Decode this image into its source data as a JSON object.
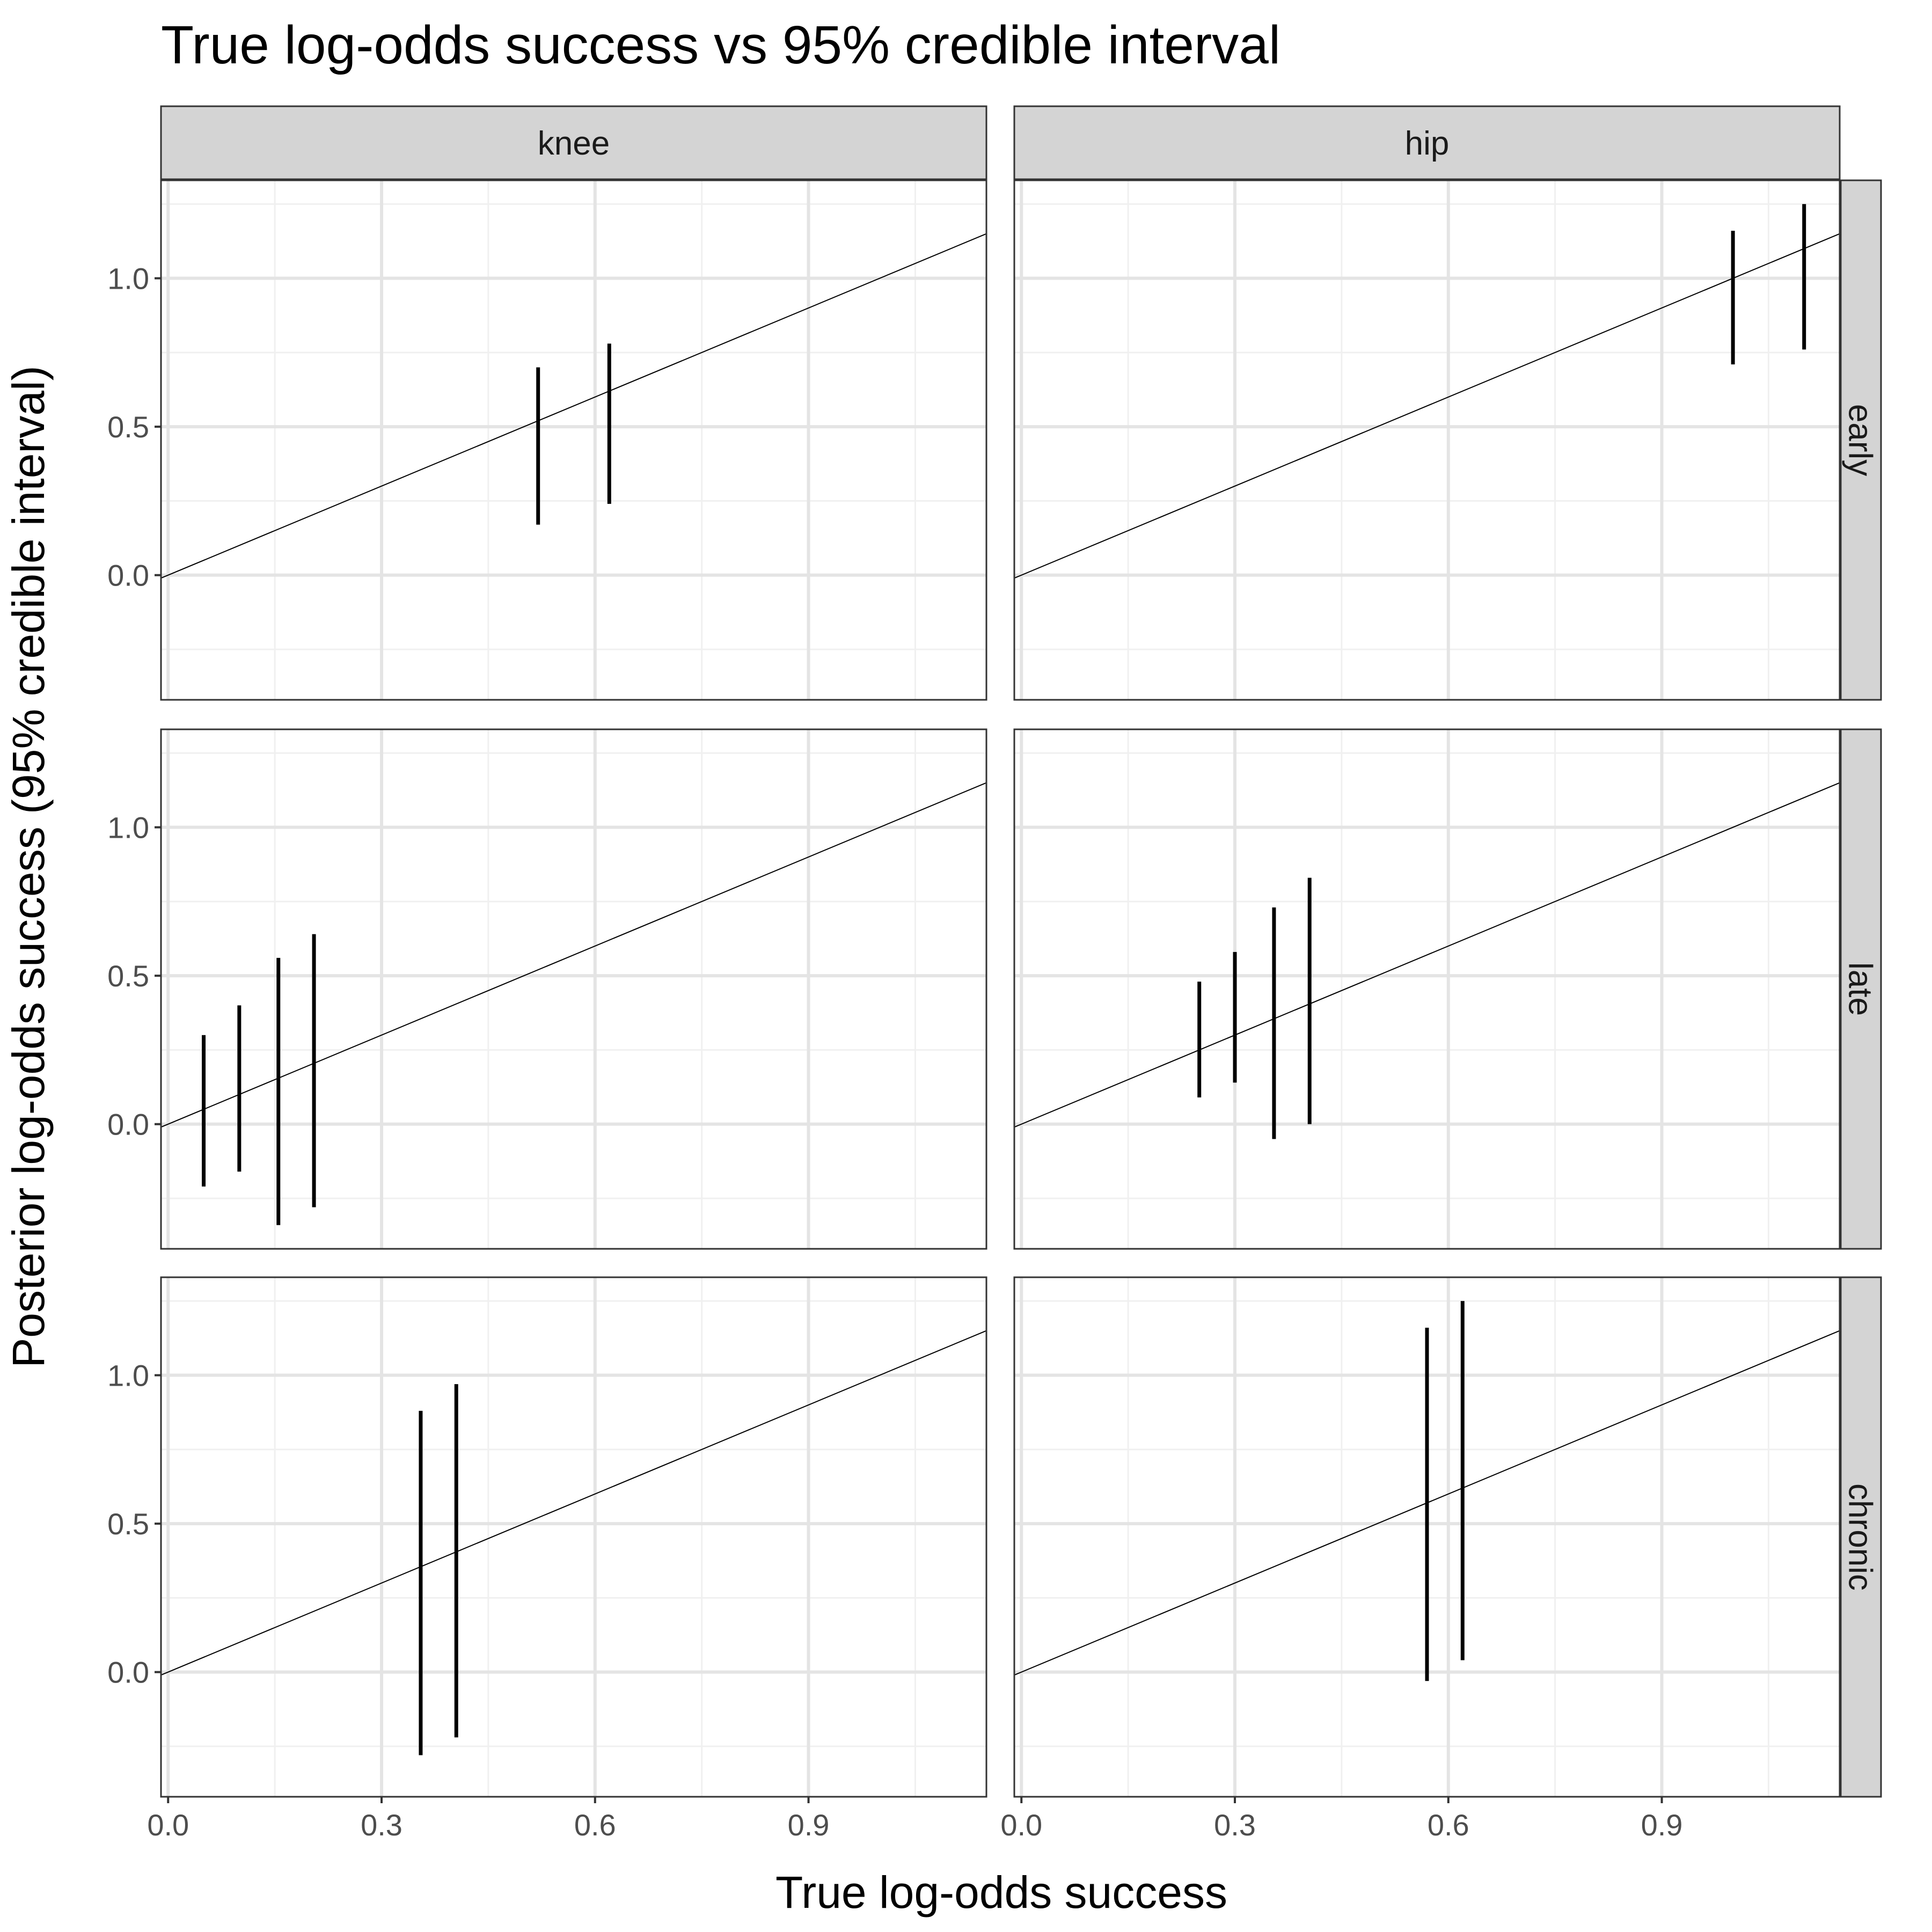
{
  "chart_data": {
    "type": "errorbar",
    "title": "True log-odds success vs 95% credible interval",
    "xlabel": "True log-odds success",
    "ylabel": "Posterior log-odds success (95% credible interval)",
    "xlim": [
      -0.01,
      1.15
    ],
    "ylim": [
      -0.42,
      1.33
    ],
    "x_ticks": [
      0.0,
      0.3,
      0.6,
      0.9
    ],
    "x_tick_labels": [
      "0.0",
      "0.3",
      "0.6",
      "0.9"
    ],
    "y_ticks": [
      0.0,
      0.5,
      1.0
    ],
    "y_tick_labels": [
      "0.0",
      "0.5",
      "1.0"
    ],
    "reference_line": "y = x",
    "grid": true,
    "columns": [
      "knee",
      "hip"
    ],
    "rows": [
      "early",
      "late",
      "chronic"
    ],
    "panels": [
      {
        "column": "knee",
        "row": "early",
        "intervals": [
          {
            "x": 0.52,
            "lower": 0.17,
            "upper": 0.7
          },
          {
            "x": 0.62,
            "lower": 0.24,
            "upper": 0.78
          }
        ]
      },
      {
        "column": "hip",
        "row": "early",
        "intervals": [
          {
            "x": 1.0,
            "lower": 0.71,
            "upper": 1.16
          },
          {
            "x": 1.1,
            "lower": 0.76,
            "upper": 1.25
          }
        ]
      },
      {
        "column": "knee",
        "row": "late",
        "intervals": [
          {
            "x": 0.05,
            "lower": -0.21,
            "upper": 0.3
          },
          {
            "x": 0.1,
            "lower": -0.16,
            "upper": 0.4
          },
          {
            "x": 0.155,
            "lower": -0.34,
            "upper": 0.56
          },
          {
            "x": 0.205,
            "lower": -0.28,
            "upper": 0.64
          }
        ]
      },
      {
        "column": "hip",
        "row": "late",
        "intervals": [
          {
            "x": 0.25,
            "lower": 0.09,
            "upper": 0.48
          },
          {
            "x": 0.3,
            "lower": 0.14,
            "upper": 0.58
          },
          {
            "x": 0.355,
            "lower": -0.05,
            "upper": 0.73
          },
          {
            "x": 0.405,
            "lower": 0.0,
            "upper": 0.83
          }
        ]
      },
      {
        "column": "knee",
        "row": "chronic",
        "intervals": [
          {
            "x": 0.355,
            "lower": -0.28,
            "upper": 0.88
          },
          {
            "x": 0.405,
            "lower": -0.22,
            "upper": 0.97
          }
        ]
      },
      {
        "column": "hip",
        "row": "chronic",
        "intervals": [
          {
            "x": 0.57,
            "lower": -0.03,
            "upper": 1.16
          },
          {
            "x": 0.62,
            "lower": 0.04,
            "upper": 1.25
          }
        ]
      }
    ]
  }
}
